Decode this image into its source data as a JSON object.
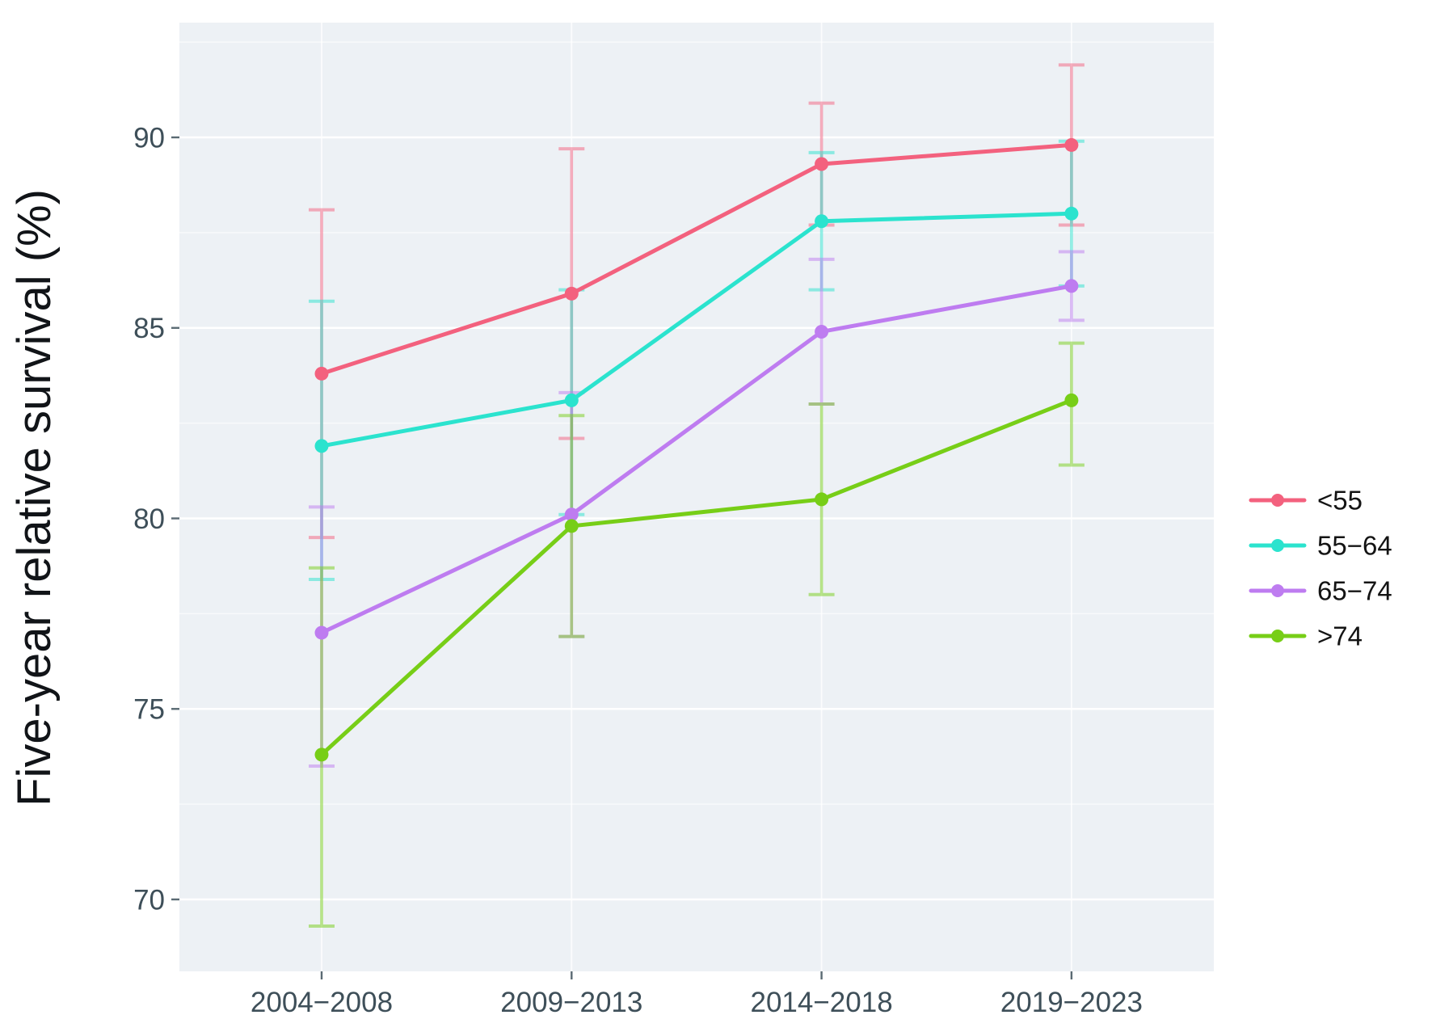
{
  "chart_data": {
    "type": "line",
    "title": "",
    "xlabel": "",
    "ylabel": "Five-year relative survival (%)",
    "categories": [
      "2004−2008",
      "2009−2013",
      "2014−2018",
      "2019−2023"
    ],
    "y_ticks": [
      70,
      75,
      80,
      85,
      90
    ],
    "y_minor_ticks": [
      72.5,
      77.5,
      82.5,
      87.5,
      92.5
    ],
    "ylim": [
      68.1,
      93.0
    ],
    "grid": "white major and minor horizontal lines plus vertical category lines on light panel",
    "legend_position": "right",
    "error_bars": "95% CI with caps, drawn semi-transparent in series color",
    "series": [
      {
        "name": "<55",
        "color": "#F3617E",
        "values": [
          83.8,
          85.9,
          89.3,
          89.8
        ],
        "ci_low": [
          79.5,
          82.1,
          87.7,
          87.7
        ],
        "ci_high": [
          88.1,
          89.7,
          90.9,
          91.9
        ]
      },
      {
        "name": "55−64",
        "color": "#2BE3CE",
        "values": [
          81.9,
          83.1,
          87.8,
          88.0
        ],
        "ci_low": [
          78.4,
          80.1,
          86.0,
          86.1
        ],
        "ci_high": [
          85.7,
          86.0,
          89.6,
          89.9
        ]
      },
      {
        "name": "65−74",
        "color": "#BE7CF0",
        "values": [
          77.0,
          80.1,
          84.9,
          86.1
        ],
        "ci_low": [
          73.5,
          76.9,
          83.0,
          85.2
        ],
        "ci_high": [
          80.3,
          83.3,
          86.8,
          87.0
        ]
      },
      {
        "name": ">74",
        "color": "#77CE17",
        "values": [
          73.8,
          79.8,
          80.5,
          83.1
        ],
        "ci_low": [
          69.3,
          76.9,
          78.0,
          81.4
        ],
        "ci_high": [
          78.7,
          82.7,
          83.0,
          84.6
        ]
      }
    ],
    "style": {
      "panel_bg": "#EDF1F5",
      "major_grid": "#FFFFFF",
      "minor_grid_opacity": 0.65,
      "tick_mark_color": "#5A6A73",
      "tick_label_color": "#3E4F59",
      "text_color": "#111418"
    }
  }
}
